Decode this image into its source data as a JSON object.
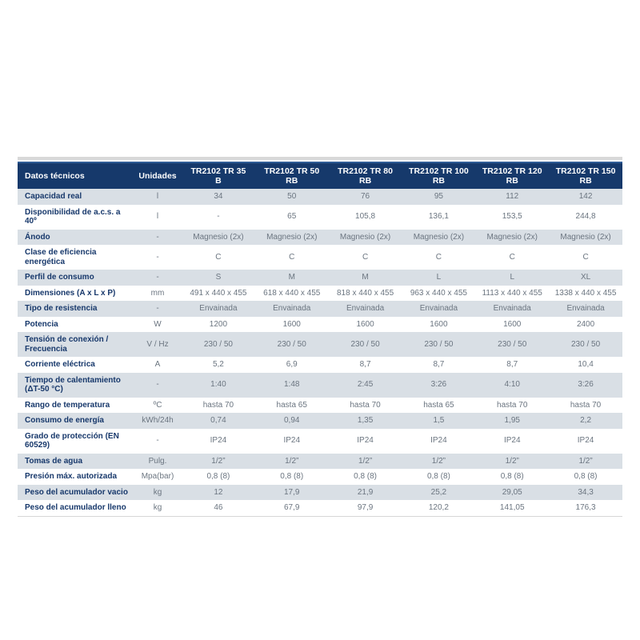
{
  "table": {
    "header": {
      "label_col": "Datos técnicos",
      "unit_col": "Unidades"
    },
    "models": [
      {
        "name": "TR2102 TR 35",
        "variant": "B"
      },
      {
        "name": "TR2102 TR 50",
        "variant": "RB"
      },
      {
        "name": "TR2102 TR 80",
        "variant": "RB"
      },
      {
        "name": "TR2102 TR 100",
        "variant": "RB"
      },
      {
        "name": "TR2102 TR 120",
        "variant": "RB"
      },
      {
        "name": "TR2102 TR 150",
        "variant": "RB"
      }
    ],
    "rows": [
      {
        "label": "Capacidad real",
        "unit": "l",
        "values": [
          "34",
          "50",
          "76",
          "95",
          "112",
          "142"
        ]
      },
      {
        "label": "Disponibilidad de a.c.s. a 40º",
        "unit": "l",
        "values": [
          "-",
          "65",
          "105,8",
          "136,1",
          "153,5",
          "244,8"
        ]
      },
      {
        "label": "Ánodo",
        "unit": "-",
        "values": [
          "Magnesio (2x)",
          "Magnesio (2x)",
          "Magnesio (2x)",
          "Magnesio (2x)",
          "Magnesio (2x)",
          "Magnesio (2x)"
        ]
      },
      {
        "label": "Clase de eficiencia energética",
        "unit": "-",
        "values": [
          "C",
          "C",
          "C",
          "C",
          "C",
          "C"
        ]
      },
      {
        "label": "Perfil de consumo",
        "unit": "-",
        "values": [
          "S",
          "M",
          "M",
          "L",
          "L",
          "XL"
        ]
      },
      {
        "label": "Dimensiones (A x L x P)",
        "unit": "mm",
        "values": [
          "491 x 440 x 455",
          "618 x 440 x 455",
          "818 x 440 x 455",
          "963 x 440 x 455",
          "1113 x 440 x 455",
          "1338 x 440 x 455"
        ]
      },
      {
        "label": "Tipo de resistencia",
        "unit": "-",
        "values": [
          "Envainada",
          "Envainada",
          "Envainada",
          "Envainada",
          "Envainada",
          "Envainada"
        ]
      },
      {
        "label": "Potencia",
        "unit": "W",
        "values": [
          "1200",
          "1600",
          "1600",
          "1600",
          "1600",
          "2400"
        ]
      },
      {
        "label": "Tensión de conexión / Frecuencia",
        "unit": "V / Hz",
        "values": [
          "230 / 50",
          "230 / 50",
          "230 / 50",
          "230 / 50",
          "230 / 50",
          "230 / 50"
        ]
      },
      {
        "label": "Corriente eléctrica",
        "unit": "A",
        "values": [
          "5,2",
          "6,9",
          "8,7",
          "8,7",
          "8,7",
          "10,4"
        ]
      },
      {
        "label": "Tiempo de calentamiento (ΔT-50 °C)",
        "unit": "-",
        "values": [
          "1:40",
          "1:48",
          "2:45",
          "3:26",
          "4:10",
          "3:26"
        ]
      },
      {
        "label": "Rango de temperatura",
        "unit": "ºC",
        "values": [
          "hasta 70",
          "hasta 65",
          "hasta 70",
          "hasta 65",
          "hasta 70",
          "hasta 70"
        ]
      },
      {
        "label": "Consumo de energía",
        "unit": "kWh/24h",
        "values": [
          "0,74",
          "0,94",
          "1,35",
          "1,5",
          "1,95",
          "2,2"
        ]
      },
      {
        "label": "Grado de protección (EN 60529)",
        "unit": "-",
        "values": [
          "IP24",
          "IP24",
          "IP24",
          "IP24",
          "IP24",
          "IP24"
        ]
      },
      {
        "label": "Tomas de agua",
        "unit": "Pulg.",
        "values": [
          "1/2”",
          "1/2”",
          "1/2”",
          "1/2”",
          "1/2”",
          "1/2”"
        ]
      },
      {
        "label": "Presión máx. autorizada",
        "unit": "Mpa(bar)",
        "values": [
          "0,8 (8)",
          "0,8 (8)",
          "0,8 (8)",
          "0,8 (8)",
          "0,8 (8)",
          "0,8 (8)"
        ]
      },
      {
        "label": "Peso del acumulador vacio",
        "unit": "kg",
        "values": [
          "12",
          "17,9",
          "21,9",
          "25,2",
          "29,05",
          "34,3"
        ]
      },
      {
        "label": "Peso del acumulador lleno",
        "unit": "kg",
        "values": [
          "46",
          "67,9",
          "97,9",
          "120,2",
          "141,05",
          "176,3"
        ]
      }
    ]
  },
  "colors": {
    "header_bg": "#16396b",
    "header_highlight": "#2e5c96",
    "row_shaded_bg": "#d9dfe5",
    "label_text": "#17386b",
    "value_text": "#6b7580",
    "top_strip": "#d9d9d9"
  }
}
